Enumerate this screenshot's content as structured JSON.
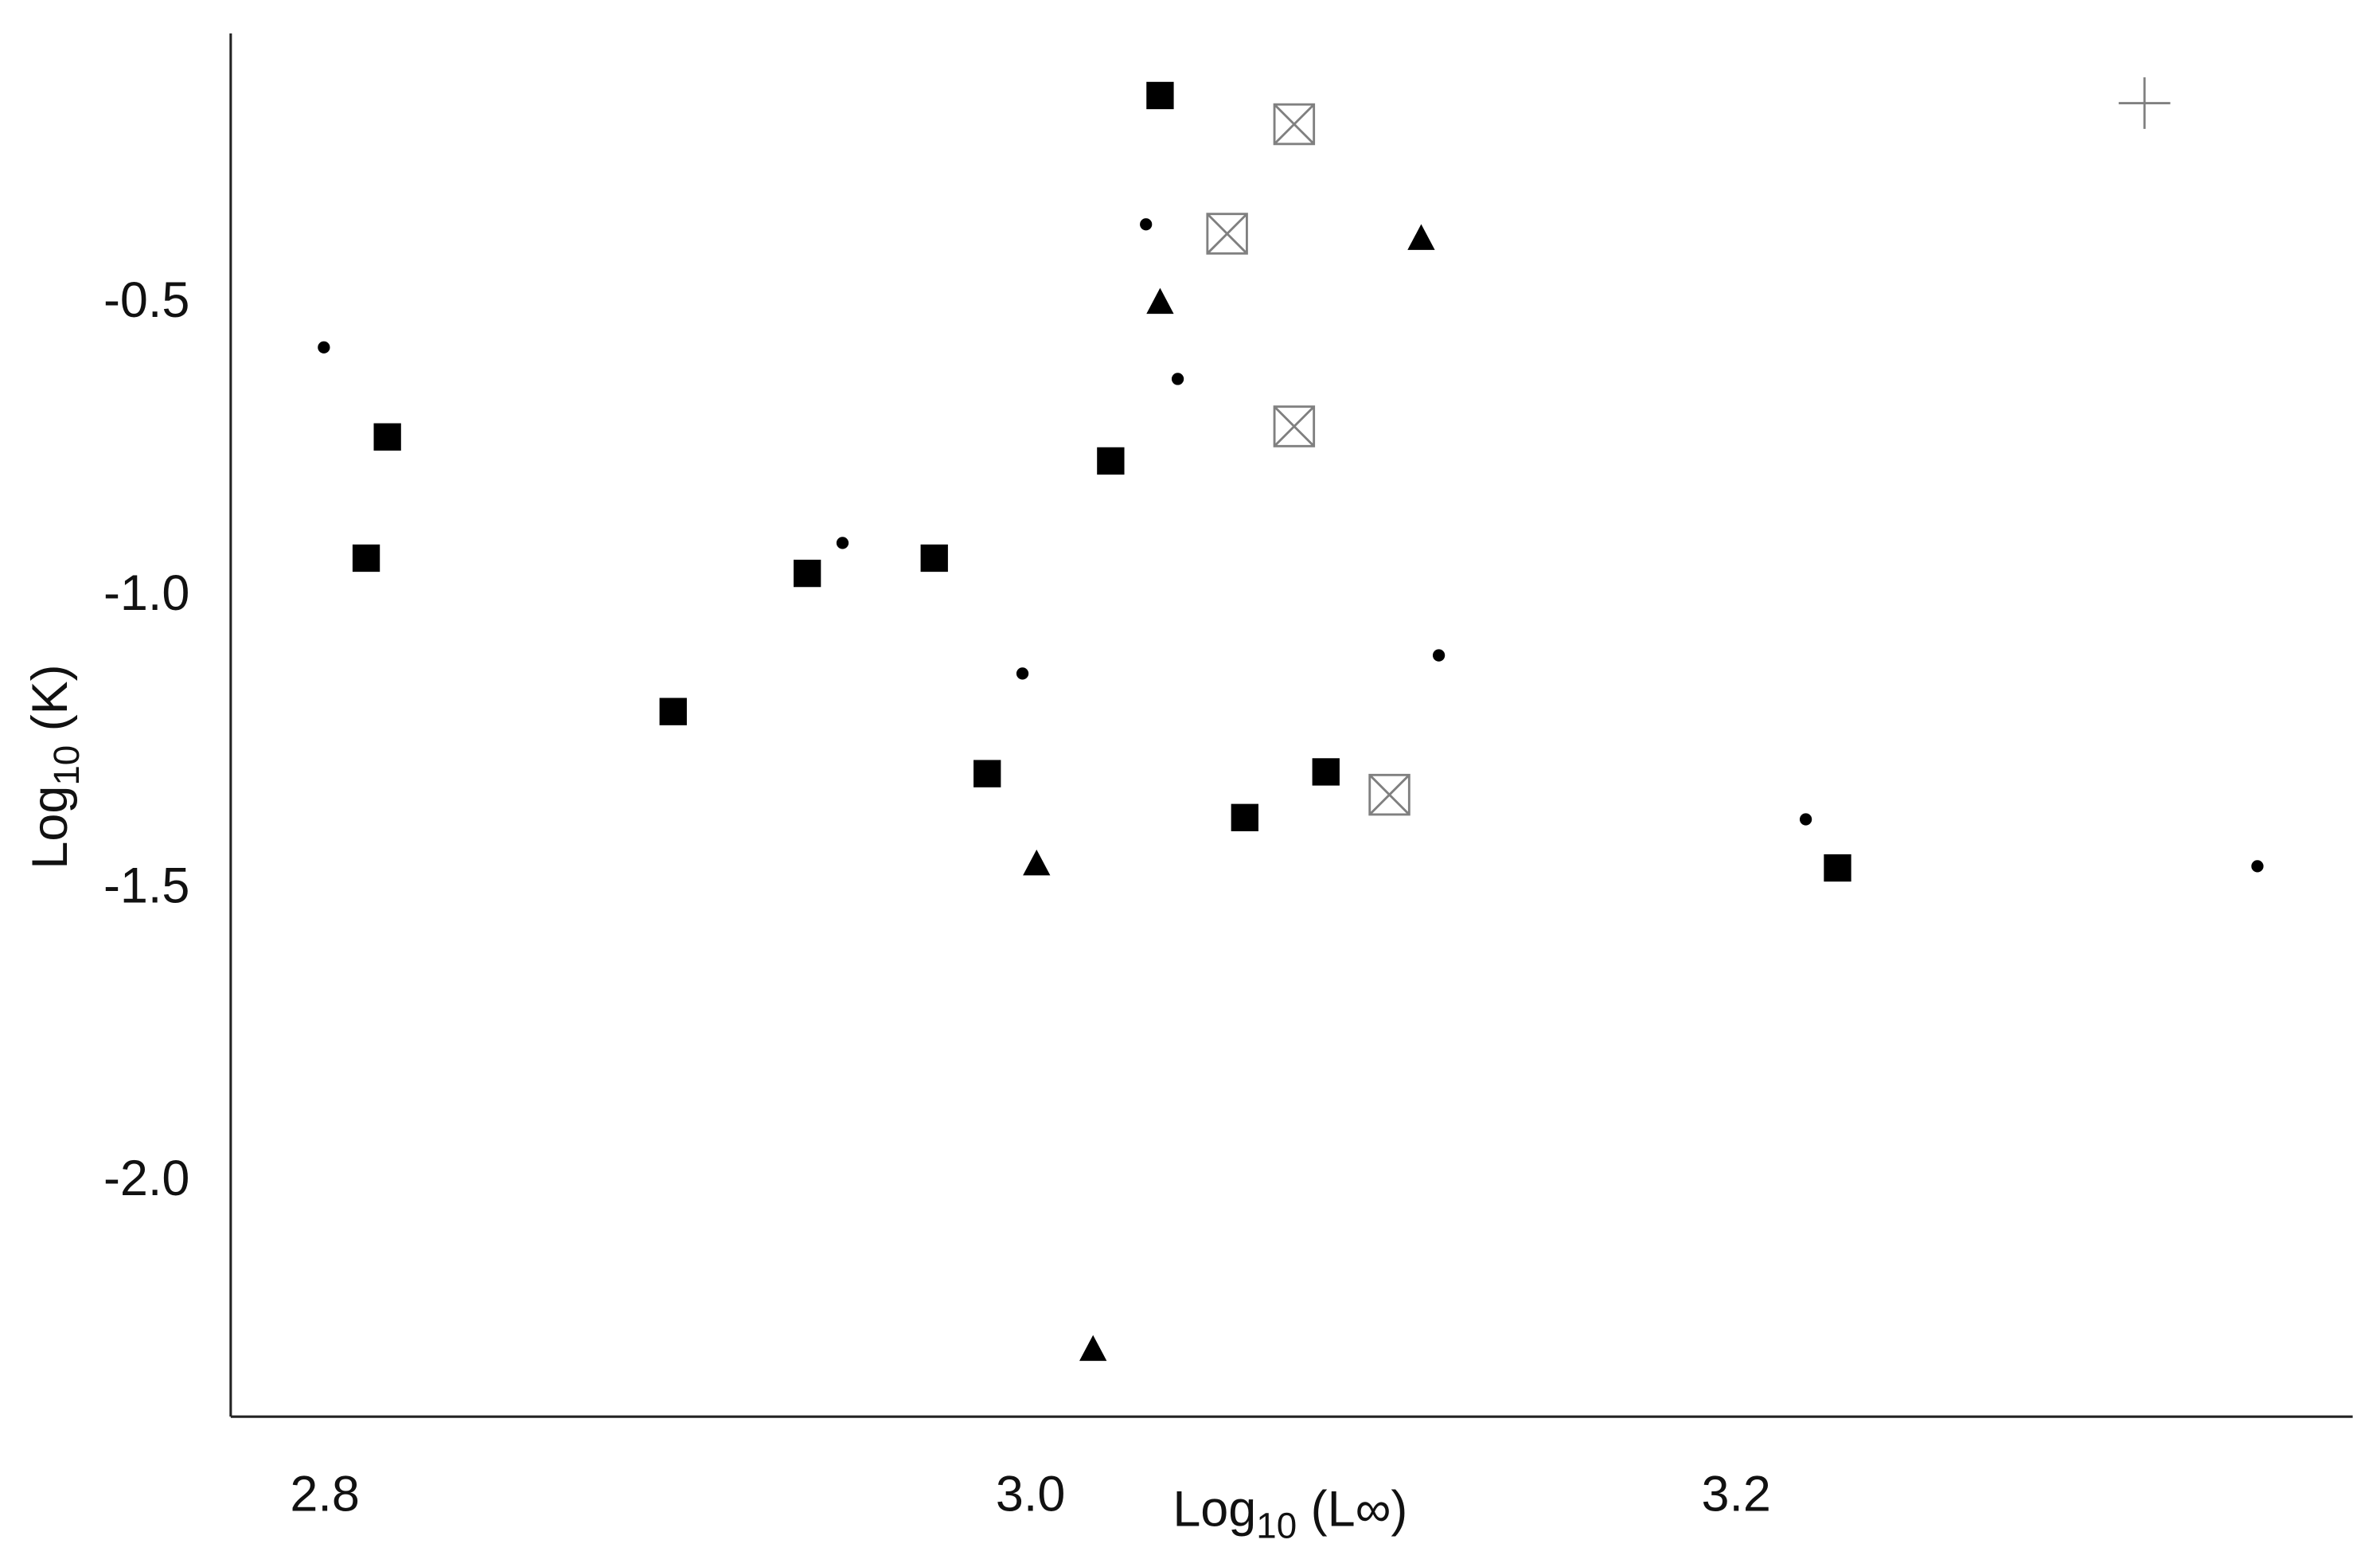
{
  "chart_data": {
    "type": "scatter",
    "x_label": "Log10 (L∞)",
    "y_label": "Log10 (K)",
    "xlim": [
      2.7716,
      3.373
    ],
    "ylim": [
      -2.409,
      -0.047
    ],
    "xticks": [
      2.8,
      {
        "value": 3,
        "label": "3.0"
      },
      3.2
    ],
    "yticks": [
      {
        "value": -0.5,
        "label": "-0.5"
      },
      {
        "value": -1,
        "label": "-1.0"
      },
      -1.5,
      {
        "value": -2,
        "label": "-2.0"
      }
    ],
    "grid": false,
    "series": [
      {
        "marker": "square",
        "color": "#000000",
        "x": [
          3.035,
          2.816,
          2.81,
          3.021,
          2.935,
          2.971,
          2.897,
          2.986,
          3.059,
          3.082,
          3.227
        ],
        "values": [
          -0.153,
          -0.736,
          -0.943,
          -0.777,
          -0.969,
          -0.943,
          -1.205,
          -1.311,
          -1.386,
          -1.308,
          -1.472
        ]
      },
      {
        "marker": "dot",
        "color": "#000000",
        "x": [
          2.798,
          3.031,
          3.04,
          2.945,
          2.996,
          3.114,
          3.218,
          3.346
        ],
        "values": [
          -0.583,
          -0.373,
          -0.637,
          -0.917,
          -1.14,
          -1.109,
          -1.389,
          -1.469
        ]
      },
      {
        "marker": "triangle",
        "color": "#000000",
        "x": [
          3.035,
          3.109,
          3.0,
          3.016
        ],
        "values": [
          -0.505,
          -0.396,
          -1.464,
          -2.293
        ]
      },
      {
        "marker": "boxx",
        "color": "#808080",
        "x": [
          3.073,
          3.054,
          3.073,
          3.1
        ],
        "values": [
          -0.202,
          -0.389,
          -0.718,
          -1.347
        ]
      },
      {
        "marker": "plus",
        "color": "#808080",
        "x": [
          3.314
        ],
        "values": [
          -0.166
        ]
      }
    ]
  }
}
